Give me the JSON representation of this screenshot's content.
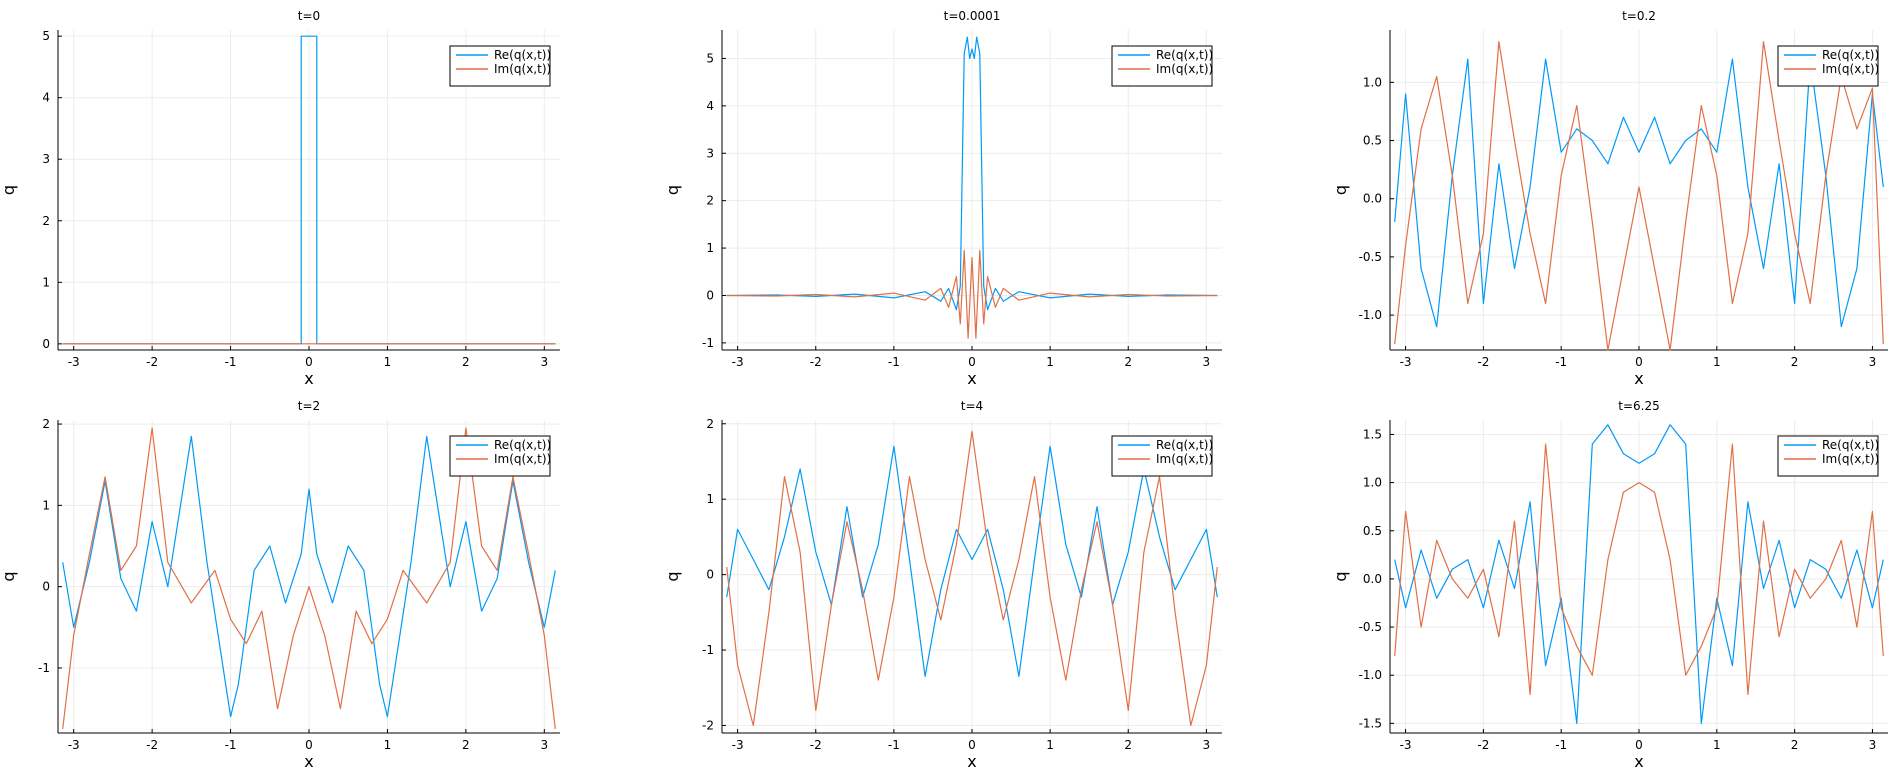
{
  "chart_data": [
    {
      "type": "line",
      "title": "t=0",
      "xlabel": "x",
      "ylabel": "q",
      "xlim": [
        -3.2,
        3.2
      ],
      "ylim": [
        -0.1,
        5.1
      ],
      "xticks": [
        -3,
        -2,
        -1,
        0,
        1,
        2,
        3
      ],
      "xtick_labels": [
        "-3",
        "-2",
        "-1",
        "0",
        "1",
        "2",
        "3"
      ],
      "yticks": [
        0,
        1,
        2,
        3,
        4,
        5
      ],
      "ytick_labels": [
        "0",
        "1",
        "2",
        "3",
        "4",
        "5"
      ],
      "grid": true,
      "legend_position": "top-right",
      "series": [
        {
          "name": "Re(q(x,t))",
          "color": "#009af9",
          "x": [
            -3.1416,
            -0.1,
            -0.1,
            0.1,
            0.1,
            3.1416
          ],
          "y": [
            0,
            0,
            5,
            5,
            0,
            0
          ]
        },
        {
          "name": "Im(q(x,t))",
          "color": "#e26f46",
          "x": [
            -3.1416,
            3.1416
          ],
          "y": [
            0,
            0
          ]
        }
      ]
    },
    {
      "type": "line",
      "title": "t=0.0001",
      "xlabel": "x",
      "ylabel": "q",
      "xlim": [
        -3.2,
        3.2
      ],
      "ylim": [
        -1.15,
        5.6
      ],
      "xticks": [
        -3,
        -2,
        -1,
        0,
        1,
        2,
        3
      ],
      "xtick_labels": [
        "-3",
        "-2",
        "-1",
        "0",
        "1",
        "2",
        "3"
      ],
      "yticks": [
        -1,
        0,
        1,
        2,
        3,
        4,
        5
      ],
      "ytick_labels": [
        "-1",
        "0",
        "1",
        "2",
        "3",
        "4",
        "5"
      ],
      "grid": true,
      "legend_position": "top-right",
      "series": [
        {
          "name": "Re(q(x,t))",
          "color": "#009af9",
          "x": [
            -3.14,
            -2.5,
            -2.0,
            -1.5,
            -1.0,
            -0.6,
            -0.4,
            -0.3,
            -0.2,
            -0.15,
            -0.1,
            -0.06,
            -0.03,
            0.0,
            0.03,
            0.06,
            0.1,
            0.15,
            0.2,
            0.3,
            0.4,
            0.6,
            1.0,
            1.5,
            2.0,
            2.5,
            3.14
          ],
          "y": [
            0,
            0.01,
            -0.02,
            0.03,
            -0.05,
            0.08,
            -0.12,
            0.15,
            -0.3,
            0.2,
            5.1,
            5.45,
            5.0,
            5.2,
            5.0,
            5.45,
            5.1,
            0.2,
            -0.3,
            0.15,
            -0.12,
            0.08,
            -0.05,
            0.03,
            -0.02,
            0.01,
            0
          ]
        },
        {
          "name": "Im(q(x,t))",
          "color": "#e26f46",
          "x": [
            -3.14,
            -2.5,
            -2.0,
            -1.5,
            -1.0,
            -0.6,
            -0.4,
            -0.3,
            -0.2,
            -0.15,
            -0.1,
            -0.05,
            0.0,
            0.05,
            0.1,
            0.15,
            0.2,
            0.3,
            0.4,
            0.6,
            1.0,
            1.5,
            2.0,
            2.5,
            3.14
          ],
          "y": [
            0,
            -0.01,
            0.02,
            -0.03,
            0.05,
            -0.1,
            0.15,
            -0.25,
            0.4,
            -0.6,
            0.95,
            -0.9,
            0.8,
            -0.9,
            0.95,
            -0.6,
            0.4,
            -0.25,
            0.15,
            -0.1,
            0.05,
            -0.03,
            0.02,
            -0.01,
            0
          ]
        }
      ]
    },
    {
      "type": "line",
      "title": "t=0.2",
      "xlabel": "x",
      "ylabel": "q",
      "xlim": [
        -3.2,
        3.2
      ],
      "ylim": [
        -1.3,
        1.45
      ],
      "xticks": [
        -3,
        -2,
        -1,
        0,
        1,
        2,
        3
      ],
      "xtick_labels": [
        "-3",
        "-2",
        "-1",
        "0",
        "1",
        "2",
        "3"
      ],
      "yticks": [
        -1.0,
        -0.5,
        0.0,
        0.5,
        1.0
      ],
      "ytick_labels": [
        "-1.0",
        "-0.5",
        "0.0",
        "0.5",
        "1.0"
      ],
      "grid": true,
      "legend_position": "top-right",
      "series": [
        {
          "name": "Re(q(x,t))",
          "color": "#009af9",
          "x": [
            -3.14,
            -3.0,
            -2.8,
            -2.6,
            -2.4,
            -2.2,
            -2.0,
            -1.8,
            -1.6,
            -1.4,
            -1.2,
            -1.0,
            -0.8,
            -0.6,
            -0.4,
            -0.2,
            0.0,
            0.2,
            0.4,
            0.6,
            0.8,
            1.0,
            1.2,
            1.4,
            1.6,
            1.8,
            2.0,
            2.2,
            2.4,
            2.6,
            2.8,
            3.0,
            3.14
          ],
          "y": [
            -0.2,
            0.9,
            -0.6,
            -1.1,
            0.2,
            1.2,
            -0.9,
            0.3,
            -0.6,
            0.1,
            1.2,
            0.4,
            0.6,
            0.5,
            0.3,
            0.7,
            0.4,
            0.7,
            0.3,
            0.5,
            0.6,
            0.4,
            1.2,
            0.1,
            -0.6,
            0.3,
            -0.9,
            1.2,
            0.2,
            -1.1,
            -0.6,
            0.9,
            0.1
          ]
        },
        {
          "name": "Im(q(x,t))",
          "color": "#e26f46",
          "x": [
            -3.14,
            -3.0,
            -2.8,
            -2.6,
            -2.4,
            -2.2,
            -2.0,
            -1.8,
            -1.6,
            -1.4,
            -1.2,
            -1.0,
            -0.8,
            -0.6,
            -0.4,
            -0.2,
            0.0,
            0.2,
            0.4,
            0.6,
            0.8,
            1.0,
            1.2,
            1.4,
            1.6,
            1.8,
            2.0,
            2.2,
            2.4,
            2.6,
            2.8,
            3.0,
            3.14
          ],
          "y": [
            -1.25,
            -0.4,
            0.6,
            1.05,
            0.2,
            -0.9,
            -0.3,
            1.35,
            0.5,
            -0.3,
            -0.9,
            0.2,
            0.8,
            -0.2,
            -1.3,
            -0.6,
            0.1,
            -0.6,
            -1.3,
            -0.2,
            0.8,
            0.2,
            -0.9,
            -0.3,
            1.35,
            0.5,
            -0.3,
            -0.9,
            0.2,
            1.05,
            0.6,
            0.95,
            -1.25
          ]
        }
      ]
    },
    {
      "type": "line",
      "title": "t=2",
      "xlabel": "x",
      "ylabel": "q",
      "xlim": [
        -3.2,
        3.2
      ],
      "ylim": [
        -1.8,
        2.05
      ],
      "xticks": [
        -3,
        -2,
        -1,
        0,
        1,
        2,
        3
      ],
      "xtick_labels": [
        "-3",
        "-2",
        "-1",
        "0",
        "1",
        "2",
        "3"
      ],
      "yticks": [
        -1,
        0,
        1,
        2
      ],
      "ytick_labels": [
        "-1",
        "0",
        "1",
        "2"
      ],
      "grid": true,
      "legend_position": "top-right",
      "series": [
        {
          "name": "Re(q(x,t))",
          "color": "#009af9",
          "x": [
            -3.14,
            -3.0,
            -2.8,
            -2.6,
            -2.4,
            -2.2,
            -2.0,
            -1.8,
            -1.5,
            -1.3,
            -1.0,
            -0.9,
            -0.7,
            -0.5,
            -0.3,
            -0.1,
            0.0,
            0.1,
            0.3,
            0.5,
            0.7,
            0.9,
            1.0,
            1.3,
            1.5,
            1.8,
            2.0,
            2.2,
            2.4,
            2.6,
            2.8,
            3.0,
            3.14
          ],
          "y": [
            0.3,
            -0.5,
            0.3,
            1.3,
            0.1,
            -0.3,
            0.8,
            0.0,
            1.85,
            0.3,
            -1.6,
            -1.2,
            0.2,
            0.5,
            -0.2,
            0.4,
            1.2,
            0.4,
            -0.2,
            0.5,
            0.2,
            -1.2,
            -1.6,
            0.3,
            1.85,
            0.0,
            0.8,
            -0.3,
            0.1,
            1.3,
            0.3,
            -0.5,
            0.2
          ]
        },
        {
          "name": "Im(q(x,t))",
          "color": "#e26f46",
          "x": [
            -3.14,
            -3.0,
            -2.8,
            -2.6,
            -2.4,
            -2.2,
            -2.0,
            -1.8,
            -1.5,
            -1.2,
            -1.0,
            -0.8,
            -0.6,
            -0.4,
            -0.2,
            0.0,
            0.2,
            0.4,
            0.6,
            0.8,
            1.0,
            1.2,
            1.5,
            1.8,
            2.0,
            2.2,
            2.4,
            2.6,
            2.8,
            3.0,
            3.14
          ],
          "y": [
            -1.75,
            -0.6,
            0.4,
            1.35,
            0.2,
            0.5,
            1.95,
            0.3,
            -0.2,
            0.2,
            -0.4,
            -0.7,
            -0.3,
            -1.5,
            -0.6,
            0.0,
            -0.6,
            -1.5,
            -0.3,
            -0.7,
            -0.4,
            0.2,
            -0.2,
            0.3,
            1.95,
            0.5,
            0.2,
            1.35,
            0.4,
            -0.6,
            -1.75
          ]
        }
      ]
    },
    {
      "type": "line",
      "title": "t=4",
      "xlabel": "x",
      "ylabel": "q",
      "xlim": [
        -3.2,
        3.2
      ],
      "ylim": [
        -2.1,
        2.05
      ],
      "xticks": [
        -3,
        -2,
        -1,
        0,
        1,
        2,
        3
      ],
      "xtick_labels": [
        "-3",
        "-2",
        "-1",
        "0",
        "1",
        "2",
        "3"
      ],
      "yticks": [
        -2,
        -1,
        0,
        1,
        2
      ],
      "ytick_labels": [
        "-2",
        "-1",
        "0",
        "1",
        "2"
      ],
      "grid": true,
      "legend_position": "top-right",
      "series": [
        {
          "name": "Re(q(x,t))",
          "color": "#009af9",
          "x": [
            -3.14,
            -3.0,
            -2.8,
            -2.6,
            -2.4,
            -2.2,
            -2.0,
            -1.8,
            -1.6,
            -1.4,
            -1.2,
            -1.0,
            -0.8,
            -0.6,
            -0.4,
            -0.2,
            0.0,
            0.2,
            0.4,
            0.6,
            0.8,
            1.0,
            1.2,
            1.4,
            1.6,
            1.8,
            2.0,
            2.2,
            2.4,
            2.6,
            2.8,
            3.0,
            3.14
          ],
          "y": [
            -0.3,
            0.6,
            0.2,
            -0.2,
            0.5,
            1.4,
            0.3,
            -0.4,
            0.9,
            -0.3,
            0.4,
            1.7,
            0.2,
            -1.35,
            -0.2,
            0.6,
            0.2,
            0.6,
            -0.2,
            -1.35,
            0.2,
            1.7,
            0.4,
            -0.3,
            0.9,
            -0.4,
            0.3,
            1.4,
            0.5,
            -0.2,
            0.2,
            0.6,
            -0.3
          ]
        },
        {
          "name": "Im(q(x,t))",
          "color": "#e26f46",
          "x": [
            -3.14,
            -3.0,
            -2.8,
            -2.6,
            -2.4,
            -2.2,
            -2.0,
            -1.8,
            -1.6,
            -1.4,
            -1.2,
            -1.0,
            -0.8,
            -0.6,
            -0.4,
            -0.2,
            0.0,
            0.2,
            0.4,
            0.6,
            0.8,
            1.0,
            1.2,
            1.4,
            1.6,
            1.8,
            2.0,
            2.2,
            2.4,
            2.6,
            2.8,
            3.0,
            3.14
          ],
          "y": [
            0.1,
            -1.2,
            -2.0,
            -0.5,
            1.3,
            0.3,
            -1.8,
            -0.4,
            0.7,
            -0.2,
            -1.4,
            -0.3,
            1.3,
            0.2,
            -0.6,
            0.4,
            1.9,
            0.4,
            -0.6,
            0.2,
            1.3,
            -0.3,
            -1.4,
            -0.2,
            0.7,
            -0.4,
            -1.8,
            0.3,
            1.3,
            -0.5,
            -2.0,
            -1.2,
            0.1
          ]
        }
      ]
    },
    {
      "type": "line",
      "title": "t=6.25",
      "xlabel": "x",
      "ylabel": "q",
      "xlim": [
        -3.2,
        3.2
      ],
      "ylim": [
        -1.6,
        1.65
      ],
      "xticks": [
        -3,
        -2,
        -1,
        0,
        1,
        2,
        3
      ],
      "xtick_labels": [
        "-3",
        "-2",
        "-1",
        "0",
        "1",
        "2",
        "3"
      ],
      "yticks": [
        -1.5,
        -1.0,
        -0.5,
        0.0,
        0.5,
        1.0,
        1.5
      ],
      "ytick_labels": [
        "-1.5",
        "-1.0",
        "-0.5",
        "0.0",
        "0.5",
        "1.0",
        "1.5"
      ],
      "grid": true,
      "legend_position": "top-right",
      "series": [
        {
          "name": "Re(q(x,t))",
          "color": "#009af9",
          "x": [
            -3.14,
            -3.0,
            -2.8,
            -2.6,
            -2.4,
            -2.2,
            -2.0,
            -1.8,
            -1.6,
            -1.4,
            -1.2,
            -1.0,
            -0.8,
            -0.6,
            -0.4,
            -0.2,
            0.0,
            0.2,
            0.4,
            0.6,
            0.8,
            1.0,
            1.2,
            1.4,
            1.6,
            1.8,
            2.0,
            2.2,
            2.4,
            2.6,
            2.8,
            3.0,
            3.14
          ],
          "y": [
            0.2,
            -0.3,
            0.3,
            -0.2,
            0.1,
            0.2,
            -0.3,
            0.4,
            -0.1,
            0.8,
            -0.9,
            -0.2,
            -1.5,
            1.4,
            1.6,
            1.3,
            1.2,
            1.3,
            1.6,
            1.4,
            -1.5,
            -0.2,
            -0.9,
            0.8,
            -0.1,
            0.4,
            -0.3,
            0.2,
            0.1,
            -0.2,
            0.3,
            -0.3,
            0.2
          ]
        },
        {
          "name": "Im(q(x,t))",
          "color": "#e26f46",
          "x": [
            -3.14,
            -3.0,
            -2.8,
            -2.6,
            -2.4,
            -2.2,
            -2.0,
            -1.8,
            -1.6,
            -1.4,
            -1.2,
            -1.0,
            -0.8,
            -0.6,
            -0.4,
            -0.2,
            0.0,
            0.2,
            0.4,
            0.6,
            0.8,
            1.0,
            1.2,
            1.4,
            1.6,
            1.8,
            2.0,
            2.2,
            2.4,
            2.6,
            2.8,
            3.0,
            3.14
          ],
          "y": [
            -0.8,
            0.7,
            -0.5,
            0.4,
            0.0,
            -0.2,
            0.1,
            -0.6,
            0.6,
            -1.2,
            1.4,
            -0.3,
            -0.7,
            -1.0,
            0.2,
            0.9,
            1.0,
            0.9,
            0.2,
            -1.0,
            -0.7,
            -0.3,
            1.4,
            -1.2,
            0.6,
            -0.6,
            0.1,
            -0.2,
            0.0,
            0.4,
            -0.5,
            0.7,
            -0.8
          ]
        }
      ]
    }
  ]
}
